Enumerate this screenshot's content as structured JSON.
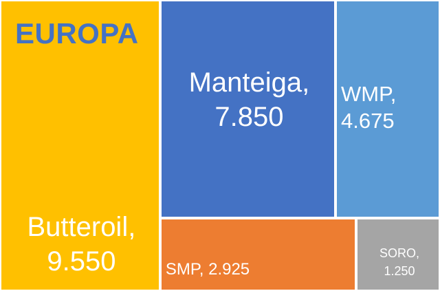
{
  "chart_data": {
    "type": "treemap",
    "title": "EUROPA",
    "items": [
      {
        "label": "Butteroil",
        "value": 9550,
        "value_text": "9.550",
        "color": "#ffc000"
      },
      {
        "label": "Manteiga",
        "value": 7850,
        "value_text": "7.850",
        "color": "#4472c4"
      },
      {
        "label": "WMP",
        "value": 4675,
        "value_text": "4.675",
        "color": "#5b9bd5"
      },
      {
        "label": "SMP",
        "value": 2925,
        "value_text": "2.925",
        "color": "#ed7d31"
      },
      {
        "label": "SORO",
        "value": 1250,
        "value_text": "1.250",
        "color": "#a5a5a5"
      }
    ]
  }
}
